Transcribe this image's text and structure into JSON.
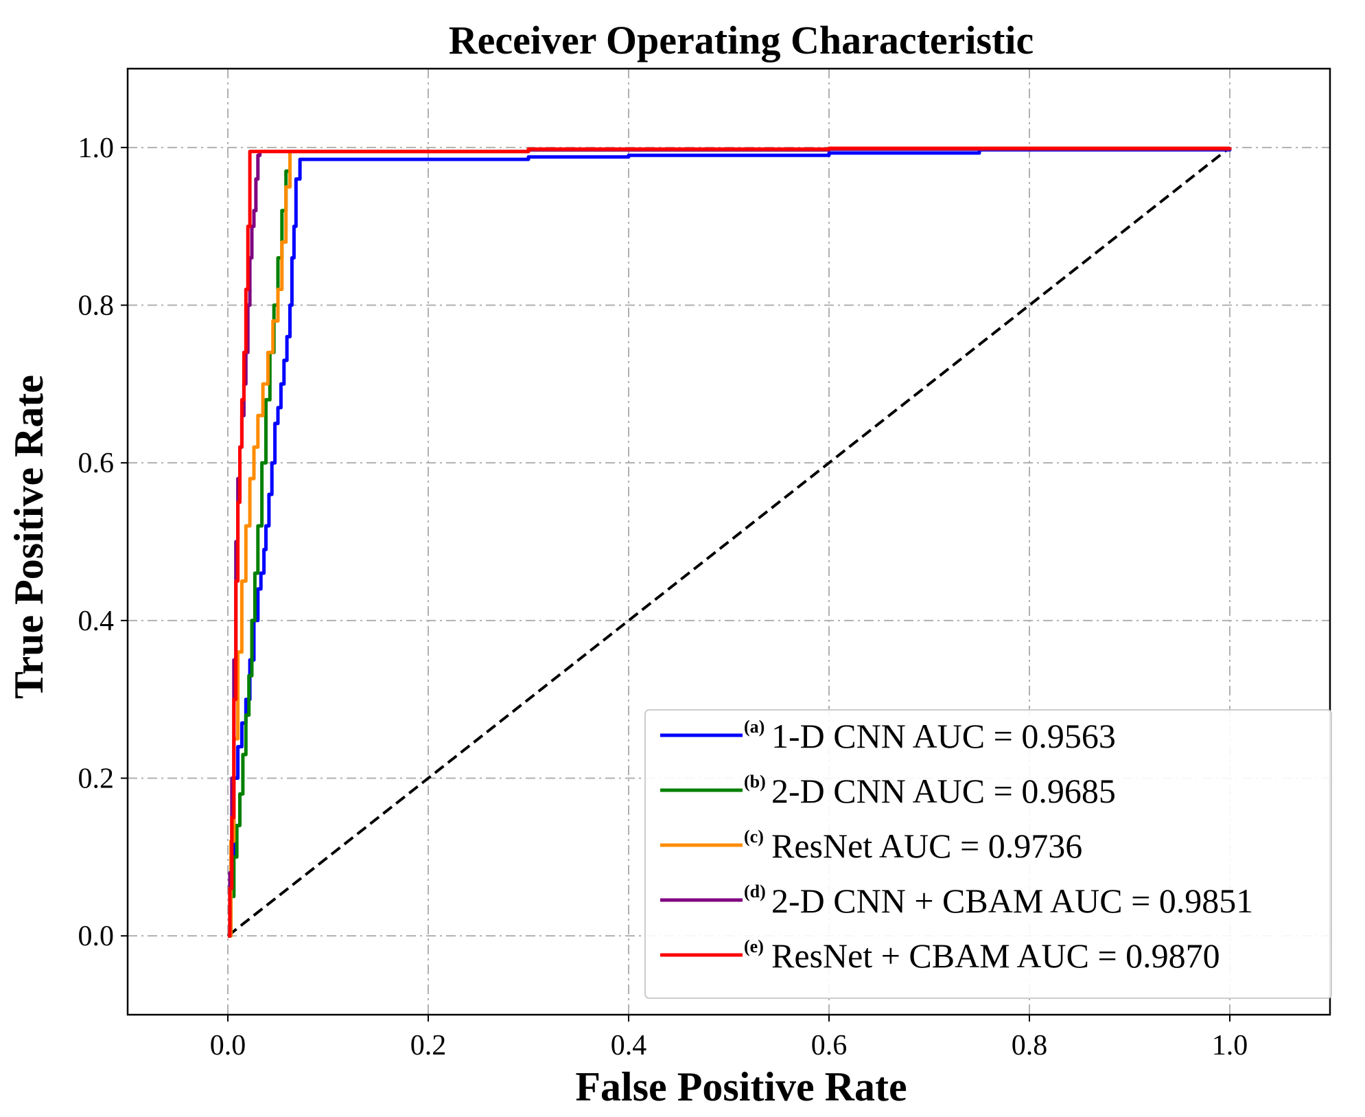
{
  "chart_data": {
    "type": "line",
    "title": "Receiver Operating Characteristic",
    "xlabel": "False Positive Rate",
    "ylabel": "True Positive Rate",
    "xlim": [
      -0.1,
      1.1
    ],
    "ylim": [
      -0.1,
      1.1
    ],
    "xticks": [
      0.0,
      0.2,
      0.4,
      0.6,
      0.8,
      1.0
    ],
    "yticks": [
      0.0,
      0.2,
      0.4,
      0.6,
      0.8,
      1.0
    ],
    "xtick_labels": [
      "0.0",
      "0.2",
      "0.4",
      "0.6",
      "0.8",
      "1.0"
    ],
    "ytick_labels": [
      "0.0",
      "0.2",
      "0.4",
      "0.6",
      "0.8",
      "1.0"
    ],
    "grid": true,
    "legend_position": "bottom-right",
    "diagonal": {
      "x": [
        0,
        1
      ],
      "y": [
        0,
        1
      ],
      "color": "#000000",
      "style": "dashed"
    },
    "series": [
      {
        "marker": "(a)",
        "name": "1-D CNN AUC = 0.9563",
        "color": "#0000ff",
        "x": [
          0,
          0.003,
          0.006,
          0.01,
          0.014,
          0.018,
          0.022,
          0.026,
          0.03,
          0.033,
          0.036,
          0.038,
          0.041,
          0.044,
          0.047,
          0.05,
          0.053,
          0.056,
          0.059,
          0.062,
          0.064,
          0.066,
          0.068,
          0.072,
          0.3,
          0.4,
          0.6,
          0.75,
          1.0
        ],
        "y": [
          0,
          0.1,
          0.2,
          0.24,
          0.27,
          0.3,
          0.35,
          0.4,
          0.44,
          0.46,
          0.49,
          0.52,
          0.56,
          0.6,
          0.65,
          0.67,
          0.7,
          0.73,
          0.76,
          0.8,
          0.86,
          0.9,
          0.96,
          0.985,
          0.988,
          0.99,
          0.993,
          0.997,
          1.0
        ]
      },
      {
        "marker": "(b)",
        "name": "2-D CNN AUC = 0.9685",
        "color": "#008000",
        "x": [
          0,
          0.003,
          0.006,
          0.009,
          0.012,
          0.015,
          0.018,
          0.021,
          0.024,
          0.027,
          0.03,
          0.034,
          0.038,
          0.042,
          0.046,
          0.05,
          0.054,
          0.058,
          0.062,
          0.3,
          0.6,
          1.0
        ],
        "y": [
          0,
          0.05,
          0.1,
          0.14,
          0.18,
          0.23,
          0.28,
          0.33,
          0.4,
          0.46,
          0.52,
          0.6,
          0.68,
          0.74,
          0.8,
          0.86,
          0.92,
          0.97,
          0.995,
          0.997,
          0.998,
          1.0
        ]
      },
      {
        "marker": "(c)",
        "name": "ResNet AUC = 0.9736",
        "color": "#ff8c00",
        "x": [
          0,
          0.003,
          0.006,
          0.01,
          0.014,
          0.018,
          0.022,
          0.026,
          0.03,
          0.035,
          0.04,
          0.045,
          0.05,
          0.054,
          0.058,
          0.062,
          0.3,
          0.6,
          1.0
        ],
        "y": [
          0,
          0.12,
          0.25,
          0.36,
          0.45,
          0.52,
          0.58,
          0.62,
          0.66,
          0.7,
          0.74,
          0.78,
          0.82,
          0.88,
          0.95,
          0.995,
          0.997,
          0.998,
          1.0
        ]
      },
      {
        "marker": "(d)",
        "name": "2-D CNN + CBAM AUC = 0.9851",
        "color": "#800080",
        "x": [
          0,
          0.002,
          0.004,
          0.006,
          0.008,
          0.01,
          0.012,
          0.014,
          0.016,
          0.018,
          0.02,
          0.022,
          0.024,
          0.026,
          0.028,
          0.03,
          0.032,
          0.3,
          0.6,
          1.0
        ],
        "y": [
          0,
          0.08,
          0.2,
          0.35,
          0.5,
          0.58,
          0.62,
          0.66,
          0.7,
          0.74,
          0.8,
          0.86,
          0.9,
          0.92,
          0.96,
          0.99,
          0.995,
          0.997,
          0.998,
          1.0
        ]
      },
      {
        "marker": "(e)",
        "name": "ResNet + CBAM AUC = 0.9870",
        "color": "#ff0000",
        "x": [
          0,
          0.002,
          0.004,
          0.006,
          0.008,
          0.01,
          0.012,
          0.014,
          0.016,
          0.018,
          0.02,
          0.022,
          0.3,
          0.6,
          1.0
        ],
        "y": [
          0,
          0.06,
          0.15,
          0.3,
          0.45,
          0.55,
          0.62,
          0.68,
          0.74,
          0.82,
          0.9,
          0.995,
          0.998,
          0.999,
          1.0
        ]
      }
    ]
  }
}
